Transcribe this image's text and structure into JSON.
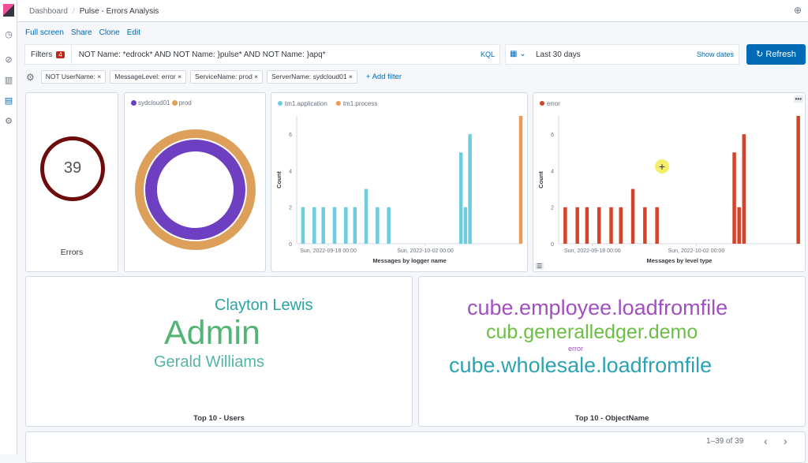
{
  "header": {
    "breadcrumb_root": "Dashboard",
    "title": "Pulse - Errors Analysis"
  },
  "actions": [
    "Full screen",
    "Share",
    "Clone",
    "Edit"
  ],
  "query": {
    "filters_label": "Filters",
    "filter_count": "4",
    "text": "NOT Name: *edrock* AND NOT Name: }pulse* AND NOT Name: }apq*",
    "language": "KQL"
  },
  "time": {
    "range": "Last 30 days",
    "show_dates": "Show dates"
  },
  "refresh_label": "Refresh",
  "filters": [
    "NOT UserName:",
    "MessageLevel: error",
    "ServiceName: prod",
    "ServerName: sydcloud01"
  ],
  "add_filter": "+ Add filter",
  "metric": {
    "value": "39",
    "label": "Errors",
    "color": "#6e0b0b"
  },
  "donut": {
    "legend": [
      "sydcloud01",
      "prod"
    ],
    "colors": [
      "#6f3fc1",
      "#dda05a"
    ]
  },
  "chart_data": [
    {
      "type": "bar",
      "title": "Messages by logger name",
      "ylabel": "Count",
      "ylim": [
        0,
        7
      ],
      "yticks": [
        "0",
        "2",
        "4",
        "6"
      ],
      "xticks": [
        "Sun, 2022-09-18 00:00",
        "Sun, 2022-10-02 00:00"
      ],
      "series": [
        {
          "name": "tm1.application",
          "color": "#6dccdf",
          "values": [
            2,
            2,
            2,
            2,
            2,
            2,
            3,
            2,
            2,
            5,
            2,
            6
          ]
        },
        {
          "name": "tm1.process",
          "color": "#f19a55",
          "values": [
            7
          ]
        }
      ]
    },
    {
      "type": "bar",
      "title": "Messages by level type",
      "ylabel": "Count",
      "ylim": [
        0,
        7
      ],
      "yticks": [
        "0",
        "2",
        "4",
        "6"
      ],
      "xticks": [
        "Sun, 2022-09-18 00:00",
        "Sun, 2022-10-02 00:00"
      ],
      "series": [
        {
          "name": "error",
          "color": "#d2452b",
          "values": [
            2,
            2,
            2,
            2,
            2,
            2,
            3,
            2,
            2,
            5,
            2,
            6,
            7
          ]
        }
      ]
    }
  ],
  "users": {
    "title": "Top 10 - Users",
    "words": [
      "Clayton Lewis",
      "Admin",
      "Gerald Williams"
    ]
  },
  "objects": {
    "title": "Top 10 - ObjectName",
    "words": [
      "cube.employee.loadfromfile",
      "cub.generalledger.demo",
      "error",
      "cube.wholesale.loadfromfile"
    ]
  },
  "pagination": {
    "text": "1–39 of 39"
  }
}
